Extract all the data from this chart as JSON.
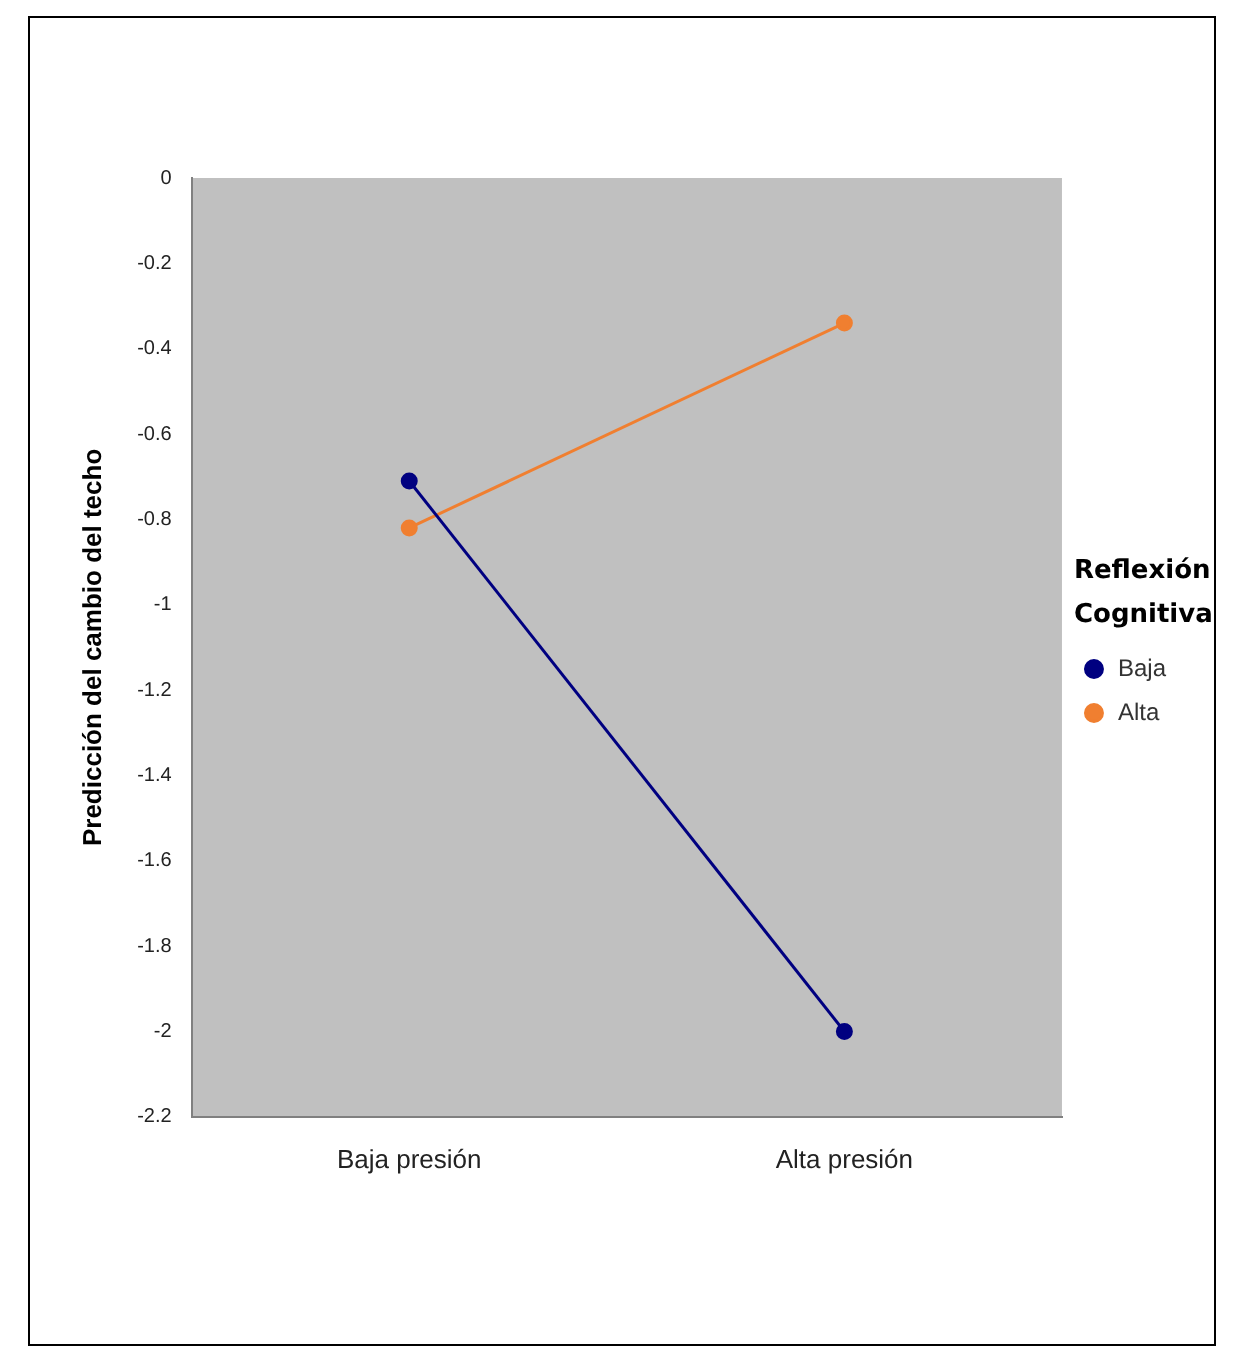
{
  "chart_data": {
    "type": "line",
    "ylabel": "Predicción del cambio del techo",
    "legend_title": "Reflexión Cognitiva",
    "categories": [
      "Baja presión",
      "Alta presión"
    ],
    "series": [
      {
        "name": "Baja",
        "color": "#000080",
        "values": [
          -0.71,
          -2.0
        ]
      },
      {
        "name": "Alta",
        "color": "#f07f30",
        "values": [
          -0.82,
          -0.34
        ]
      }
    ],
    "ylim": [
      -2.2,
      0
    ],
    "yticks": [
      0,
      -0.2,
      -0.4,
      -0.6,
      -0.8,
      -1,
      -1.2,
      -1.4,
      -1.6,
      -1.8,
      -2,
      -2.2
    ],
    "grid": false,
    "legend": "right",
    "marker": "circle",
    "line_style": "solid"
  }
}
